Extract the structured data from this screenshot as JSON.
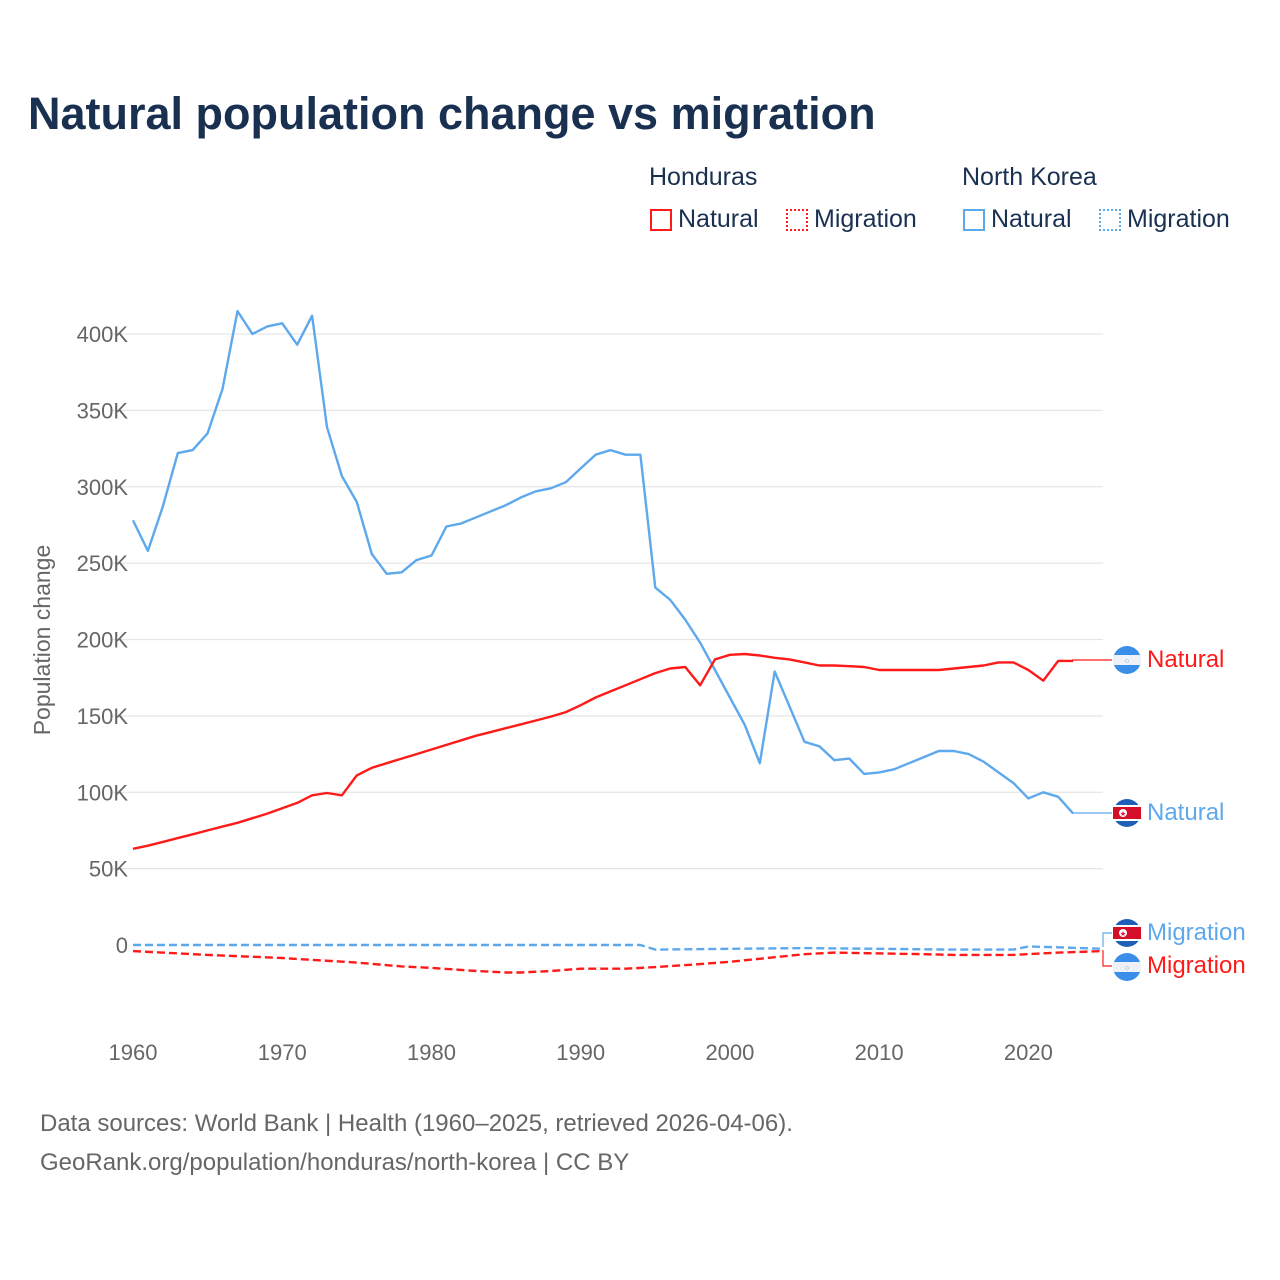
{
  "title": "Natural population change vs migration",
  "legend": {
    "groups": [
      {
        "name": "Honduras",
        "items": [
          "Natural",
          "Migration"
        ]
      },
      {
        "name": "North Korea",
        "items": [
          "Natural",
          "Migration"
        ]
      }
    ]
  },
  "colors": {
    "honduras": "#ff1a1a",
    "north_korea": "#5ea8ec",
    "title": "#1a3050",
    "grid": "#e6e6e6"
  },
  "footer": {
    "line1": "Data sources: World Bank | Health (1960–2025, retrieved 2026-04-06).",
    "line2": "GeoRank.org/population/honduras/north-korea | CC BY"
  },
  "end_labels": {
    "hn_natural": "Natural",
    "kp_natural": "Natural",
    "kp_migration": "Migration",
    "hn_migration": "Migration"
  },
  "chart_data": {
    "type": "line",
    "title": "Natural population change vs migration",
    "xlabel": "",
    "ylabel": "Population change",
    "xlim": [
      1960,
      2025
    ],
    "ylim": [
      -45000,
      420000
    ],
    "xticks": [
      1960,
      1970,
      1980,
      1990,
      2000,
      2010,
      2020
    ],
    "xtick_labels": [
      "1960",
      "1970",
      "1980",
      "1990",
      "2000",
      "2010",
      "2020"
    ],
    "yticks": [
      0,
      50000,
      100000,
      150000,
      200000,
      250000,
      300000,
      350000,
      400000
    ],
    "ytick_labels": [
      "0",
      "50K",
      "100K",
      "150K",
      "200K",
      "250K",
      "300K",
      "350K",
      "400K"
    ],
    "grid": true,
    "legend_position": "top-right",
    "series": [
      {
        "name": "Honduras Natural",
        "country": "Honduras",
        "kind": "Natural",
        "color": "#ff1a1a",
        "dash": false,
        "x": [
          1960,
          1961,
          1962,
          1963,
          1964,
          1965,
          1966,
          1967,
          1968,
          1969,
          1970,
          1971,
          1972,
          1973,
          1974,
          1975,
          1976,
          1977,
          1978,
          1979,
          1980,
          1981,
          1982,
          1983,
          1984,
          1985,
          1986,
          1987,
          1988,
          1989,
          1990,
          1991,
          1992,
          1993,
          1994,
          1995,
          1996,
          1997,
          1998,
          1999,
          2000,
          2001,
          2002,
          2003,
          2004,
          2005,
          2006,
          2007,
          2008,
          2009,
          2010,
          2011,
          2012,
          2013,
          2014,
          2015,
          2016,
          2017,
          2018,
          2019,
          2020,
          2021,
          2022,
          2023
        ],
        "y": [
          63000,
          65000,
          67500,
          70000,
          72500,
          75000,
          77500,
          80000,
          83000,
          86000,
          89500,
          93000,
          98000,
          99500,
          98000,
          111000,
          116000,
          119000,
          122000,
          125000,
          128000,
          131000,
          134000,
          137000,
          139500,
          142000,
          144500,
          147000,
          149500,
          152500,
          157000,
          162000,
          166000,
          170000,
          174000,
          178000,
          181000,
          182000,
          170000,
          187000,
          190000,
          190500,
          189500,
          188000,
          187000,
          185000,
          183000,
          183000,
          182500,
          182000,
          180000,
          180000,
          180000,
          180000,
          180000,
          181000,
          182000,
          183000,
          185000,
          185000,
          180000,
          173000,
          186000,
          186000
        ]
      },
      {
        "name": "Honduras Migration",
        "country": "Honduras",
        "kind": "Migration",
        "color": "#ff1a1a",
        "dash": true,
        "x": [
          1960,
          1965,
          1970,
          1975,
          1978,
          1980,
          1983,
          1985,
          1986,
          1988,
          1990,
          1993,
          1995,
          1998,
          2000,
          2003,
          2005,
          2007,
          2010,
          2013,
          2015,
          2017,
          2019,
          2022,
          2025
        ],
        "y": [
          -4000,
          -6500,
          -8500,
          -11500,
          -14000,
          -15000,
          -17000,
          -18000,
          -18000,
          -17000,
          -15500,
          -15500,
          -14500,
          -12500,
          -11000,
          -8000,
          -6000,
          -5000,
          -5500,
          -6000,
          -6500,
          -6500,
          -6500,
          -5000,
          -4000
        ]
      },
      {
        "name": "North Korea Natural",
        "country": "North Korea",
        "kind": "Natural",
        "color": "#5ea8ec",
        "dash": false,
        "x": [
          1960,
          1961,
          1962,
          1963,
          1964,
          1965,
          1966,
          1967,
          1968,
          1969,
          1970,
          1971,
          1972,
          1973,
          1974,
          1975,
          1976,
          1977,
          1978,
          1979,
          1980,
          1981,
          1982,
          1983,
          1984,
          1985,
          1986,
          1987,
          1988,
          1989,
          1990,
          1991,
          1992,
          1993,
          1994,
          1995,
          1996,
          1997,
          1998,
          1999,
          2000,
          2001,
          2002,
          2003,
          2004,
          2005,
          2006,
          2007,
          2008,
          2009,
          2010,
          2011,
          2012,
          2013,
          2014,
          2015,
          2016,
          2017,
          2018,
          2019,
          2020,
          2021,
          2022,
          2023
        ],
        "y": [
          278000,
          258000,
          287000,
          322000,
          324000,
          335000,
          364000,
          415000,
          400000,
          405000,
          407000,
          393000,
          412000,
          339000,
          307000,
          290000,
          256000,
          243000,
          244000,
          252000,
          255000,
          274000,
          276000,
          280000,
          284000,
          288000,
          293000,
          297000,
          299000,
          303000,
          312000,
          321000,
          324000,
          321000,
          321000,
          234000,
          226000,
          213000,
          198000,
          180000,
          162000,
          144000,
          119000,
          179000,
          156000,
          133000,
          130000,
          121000,
          122000,
          112000,
          113000,
          115000,
          119000,
          123000,
          127000,
          127000,
          125000,
          120000,
          113000,
          106000,
          96000,
          100000,
          97000,
          86000
        ]
      },
      {
        "name": "North Korea Migration",
        "country": "North Korea",
        "kind": "Migration",
        "color": "#5ea8ec",
        "dash": true,
        "x": [
          1960,
          1994,
          1995,
          2000,
          2005,
          2010,
          2015,
          2019,
          2020,
          2022,
          2025
        ],
        "y": [
          0,
          0,
          -3000,
          -2500,
          -2000,
          -2500,
          -3000,
          -3000,
          -1000,
          -1500,
          -2500
        ]
      }
    ]
  }
}
